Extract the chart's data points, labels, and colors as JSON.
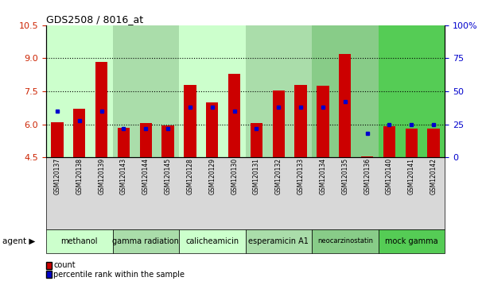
{
  "title": "GDS2508 / 8016_at",
  "samples": [
    "GSM120137",
    "GSM120138",
    "GSM120139",
    "GSM120143",
    "GSM120144",
    "GSM120145",
    "GSM120128",
    "GSM120129",
    "GSM120130",
    "GSM120131",
    "GSM120132",
    "GSM120133",
    "GSM120134",
    "GSM120135",
    "GSM120136",
    "GSM120140",
    "GSM120141",
    "GSM120142"
  ],
  "count_values": [
    6.1,
    6.7,
    8.85,
    5.85,
    6.05,
    5.95,
    7.8,
    7.0,
    8.3,
    6.05,
    7.55,
    7.8,
    7.75,
    9.2,
    4.55,
    5.9,
    5.82,
    5.8
  ],
  "percentile_values": [
    35,
    28,
    35,
    22,
    22,
    22,
    38,
    38,
    35,
    22,
    38,
    38,
    38,
    42,
    18,
    25,
    25,
    25
  ],
  "groups": [
    {
      "label": "methanol",
      "start": 0,
      "end": 3,
      "color": "#ccffcc"
    },
    {
      "label": "gamma radiation",
      "start": 3,
      "end": 6,
      "color": "#aaddaa"
    },
    {
      "label": "calicheamicin",
      "start": 6,
      "end": 9,
      "color": "#ccffcc"
    },
    {
      "label": "esperamicin A1",
      "start": 9,
      "end": 12,
      "color": "#aaddaa"
    },
    {
      "label": "neocarzinostatin",
      "start": 12,
      "end": 15,
      "color": "#88cc88"
    },
    {
      "label": "mock gamma",
      "start": 15,
      "end": 18,
      "color": "#55cc55"
    }
  ],
  "ylim_left": [
    4.5,
    10.5
  ],
  "ylim_right": [
    0,
    100
  ],
  "yticks_left": [
    4.5,
    6.0,
    7.5,
    9.0,
    10.5
  ],
  "yticks_right": [
    0,
    25,
    50,
    75,
    100
  ],
  "bar_color": "#cc0000",
  "dot_color": "#0000cc",
  "bar_width": 0.55,
  "ylabel_left_color": "#cc2200",
  "ylabel_right_color": "#0000cc"
}
